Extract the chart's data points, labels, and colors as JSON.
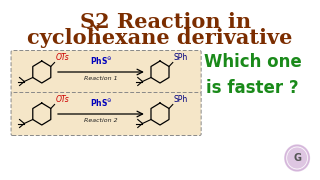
{
  "bg_color": "#ffffff",
  "title_color": "#7B2D00",
  "title_line2": "cyclohexane derivative",
  "which_text": "Which one\nis faster ?",
  "which_color": "#1a8a1a",
  "which_fontsize": 12,
  "reaction_box_color": "#F5E6C8",
  "reaction1_label": "Reaction 1",
  "reaction2_label": "Reaction 2",
  "reagent_color": "#0000BB",
  "ots_color": "#CC0000",
  "ots_text": "OTs",
  "sph_color": "#000080",
  "sph_text": "SPh",
  "title_fontsize": 15
}
